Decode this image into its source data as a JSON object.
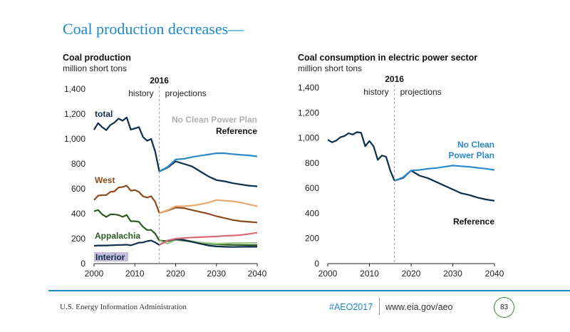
{
  "slide": {
    "title": "Coal production decreases—"
  },
  "footer": {
    "agency": "U.S. Energy Information Administration",
    "hashtag": "#AEO2017",
    "url": "www.eia.gov/aeo",
    "page_number": "83"
  },
  "colors": {
    "total_reference": "#0d2e4a",
    "total_no_cpp": "#2a8ac9",
    "west_reference": "#8b4a1c",
    "west_no_cpp": "#e8a870",
    "appalachia_reference": "#2d5a1f",
    "appalachia_no_cpp": "#9bc985",
    "interior_reference": "#0d2e4a",
    "interior_no_cpp": "#d86a78",
    "consumption_reference": "#0d2e4a",
    "consumption_no_cpp": "#2a8ac9",
    "divider": "#999999",
    "no_cpp_label": "#b0b0b0"
  },
  "chart_data": [
    {
      "type": "line",
      "title": "Coal production",
      "subtitle": "million short tons",
      "xlim": [
        2000,
        2040
      ],
      "ylim": [
        0,
        1400
      ],
      "xticks": [
        "2000",
        "2010",
        "2020",
        "2030",
        "2040"
      ],
      "yticks": [
        "0",
        "200",
        "400",
        "600",
        "800",
        "1,000",
        "1,200",
        "1,400"
      ],
      "annotations": {
        "divider_year_label": "2016",
        "history": "history",
        "projections": "projections",
        "total": "total",
        "no_cpp": "No Clean Power Plan",
        "reference": "Reference",
        "west": "West",
        "appalachia": "Appalachia",
        "interior": "Interior"
      },
      "divider_year": 2016,
      "series": [
        {
          "name": "total",
          "scenario": "history",
          "x": [
            2000,
            2001,
            2002,
            2003,
            2004,
            2005,
            2006,
            2007,
            2008,
            2009,
            2010,
            2011,
            2012,
            2013,
            2014,
            2015,
            2016
          ],
          "y": [
            1074,
            1127,
            1094,
            1071,
            1112,
            1131,
            1163,
            1146,
            1172,
            1075,
            1084,
            1095,
            1016,
            985,
            1000,
            897,
            739
          ]
        },
        {
          "name": "total",
          "scenario": "Reference",
          "x": [
            2016,
            2018,
            2020,
            2022,
            2024,
            2026,
            2028,
            2030,
            2032,
            2034,
            2036,
            2038,
            2040
          ],
          "y": [
            739,
            770,
            820,
            800,
            780,
            740,
            700,
            670,
            660,
            645,
            635,
            625,
            620
          ]
        },
        {
          "name": "total",
          "scenario": "No Clean Power Plan",
          "x": [
            2016,
            2018,
            2020,
            2022,
            2024,
            2026,
            2028,
            2030,
            2032,
            2034,
            2036,
            2038,
            2040
          ],
          "y": [
            739,
            775,
            835,
            840,
            855,
            865,
            875,
            885,
            885,
            878,
            872,
            868,
            860
          ]
        },
        {
          "name": "West",
          "scenario": "history",
          "x": [
            2000,
            2001,
            2002,
            2003,
            2004,
            2005,
            2006,
            2007,
            2008,
            2009,
            2010,
            2011,
            2012,
            2013,
            2014,
            2015,
            2016
          ],
          "y": [
            510,
            545,
            550,
            550,
            575,
            580,
            610,
            615,
            625,
            585,
            590,
            575,
            540,
            530,
            540,
            495,
            405
          ]
        },
        {
          "name": "West",
          "scenario": "Reference",
          "x": [
            2016,
            2018,
            2020,
            2022,
            2024,
            2026,
            2028,
            2030,
            2032,
            2034,
            2036,
            2038,
            2040
          ],
          "y": [
            405,
            425,
            450,
            445,
            430,
            415,
            400,
            380,
            365,
            350,
            340,
            335,
            330
          ]
        },
        {
          "name": "West",
          "scenario": "No Clean Power Plan",
          "x": [
            2016,
            2018,
            2020,
            2022,
            2024,
            2026,
            2028,
            2030,
            2032,
            2034,
            2036,
            2038,
            2040
          ],
          "y": [
            405,
            428,
            460,
            460,
            465,
            475,
            490,
            510,
            505,
            500,
            490,
            475,
            460
          ]
        },
        {
          "name": "Appalachia",
          "scenario": "history",
          "x": [
            2000,
            2001,
            2002,
            2003,
            2004,
            2005,
            2006,
            2007,
            2008,
            2009,
            2010,
            2011,
            2012,
            2013,
            2014,
            2015,
            2016
          ],
          "y": [
            420,
            430,
            395,
            375,
            395,
            395,
            390,
            375,
            390,
            340,
            340,
            335,
            295,
            270,
            270,
            240,
            185
          ]
        },
        {
          "name": "Appalachia",
          "scenario": "Reference",
          "x": [
            2016,
            2018,
            2020,
            2022,
            2024,
            2026,
            2028,
            2030,
            2032,
            2034,
            2036,
            2038,
            2040
          ],
          "y": [
            185,
            180,
            190,
            185,
            175,
            165,
            160,
            155,
            152,
            150,
            150,
            148,
            148
          ]
        },
        {
          "name": "Appalachia",
          "scenario": "No Clean Power Plan",
          "x": [
            2016,
            2018,
            2020,
            2022,
            2024,
            2026,
            2028,
            2030,
            2032,
            2034,
            2036,
            2038,
            2040
          ],
          "y": [
            185,
            160,
            190,
            190,
            180,
            170,
            165,
            160,
            162,
            165,
            165,
            165,
            165
          ]
        },
        {
          "name": "Interior",
          "scenario": "history",
          "x": [
            2000,
            2001,
            2002,
            2003,
            2004,
            2005,
            2006,
            2007,
            2008,
            2009,
            2010,
            2011,
            2012,
            2013,
            2014,
            2015,
            2016
          ],
          "y": [
            143,
            145,
            145,
            145,
            147,
            148,
            150,
            150,
            152,
            146,
            157,
            168,
            170,
            180,
            185,
            170,
            150
          ]
        },
        {
          "name": "Interior",
          "scenario": "Reference",
          "x": [
            2016,
            2018,
            2020,
            2022,
            2024,
            2026,
            2028,
            2030,
            2032,
            2034,
            2036,
            2038,
            2040
          ],
          "y": [
            150,
            185,
            195,
            190,
            175,
            160,
            145,
            138,
            135,
            133,
            135,
            135,
            135
          ]
        },
        {
          "name": "Interior",
          "scenario": "No Clean Power Plan",
          "x": [
            2016,
            2018,
            2020,
            2022,
            2024,
            2026,
            2028,
            2030,
            2032,
            2034,
            2036,
            2038,
            2040
          ],
          "y": [
            150,
            185,
            200,
            205,
            210,
            212,
            215,
            218,
            222,
            225,
            230,
            238,
            248
          ]
        }
      ]
    },
    {
      "type": "line",
      "title": "Coal consumption in electric power sector",
      "subtitle": "million short tons",
      "xlim": [
        2000,
        2040
      ],
      "ylim": [
        0,
        1400
      ],
      "xticks": [
        "2000",
        "2010",
        "2020",
        "2030",
        "2040"
      ],
      "yticks": [
        "0",
        "200",
        "400",
        "600",
        "800",
        "1,000",
        "1,200",
        "1,400"
      ],
      "annotations": {
        "divider_year_label": "2016",
        "history": "history",
        "projections": "projections",
        "no_cpp_line1": "No Clean",
        "no_cpp_line2": "Power Plan",
        "reference": "Reference"
      },
      "divider_year": 2016,
      "series": [
        {
          "name": "consumption",
          "scenario": "history",
          "x": [
            2000,
            2001,
            2002,
            2003,
            2004,
            2005,
            2006,
            2007,
            2008,
            2009,
            2010,
            2011,
            2012,
            2013,
            2014,
            2015,
            2016
          ],
          "y": [
            985,
            965,
            978,
            1005,
            1015,
            1037,
            1027,
            1046,
            1041,
            934,
            975,
            933,
            825,
            860,
            850,
            740,
            660
          ]
        },
        {
          "name": "consumption",
          "scenario": "Reference",
          "x": [
            2016,
            2018,
            2020,
            2022,
            2024,
            2026,
            2028,
            2030,
            2032,
            2034,
            2036,
            2038,
            2040
          ],
          "y": [
            660,
            680,
            740,
            700,
            680,
            650,
            620,
            590,
            560,
            545,
            525,
            510,
            500
          ]
        },
        {
          "name": "consumption",
          "scenario": "No Clean Power Plan",
          "x": [
            2016,
            2018,
            2020,
            2022,
            2024,
            2026,
            2028,
            2030,
            2032,
            2034,
            2036,
            2038,
            2040
          ],
          "y": [
            660,
            685,
            740,
            745,
            755,
            760,
            770,
            780,
            775,
            770,
            762,
            755,
            745
          ]
        }
      ]
    }
  ]
}
